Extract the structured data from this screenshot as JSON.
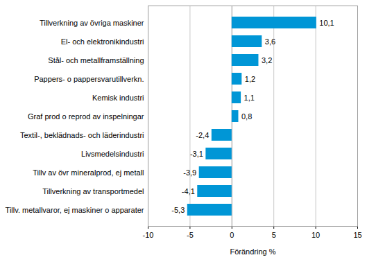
{
  "chart_data": {
    "type": "bar",
    "orientation": "horizontal",
    "x_label": "Förändring %",
    "categories": [
      "Tillverkning av övriga maskiner",
      "El- och elektronikindustri",
      "Stål- och metallframställning",
      "Pappers- o pappersvarutillverkn.",
      "Kemisk industri",
      "Graf prod o reprod av inspelningar",
      "Textil-, beklädnads- och läderindustri",
      "Livsmedelsindustri",
      "Tillv av övr mineralprod, ej metall",
      "Tillverkning av transportmedel",
      "Tillv. metallvaror, ej maskiner o apparater"
    ],
    "values": [
      10.1,
      3.6,
      3.2,
      1.2,
      1.1,
      0.8,
      -2.4,
      -3.1,
      -3.9,
      -4.1,
      -5.3
    ],
    "value_labels": [
      "10,1",
      "3,6",
      "3,2",
      "1,2",
      "1,1",
      "0,8",
      "-2,4",
      "-3,1",
      "-3,9",
      "-4,1",
      "-5,3"
    ],
    "data_labels": true,
    "color": "#0096d6",
    "xlim": [
      -10,
      15
    ],
    "xticks": [
      -10,
      -5,
      0,
      5,
      10,
      15
    ],
    "grid": true
  }
}
